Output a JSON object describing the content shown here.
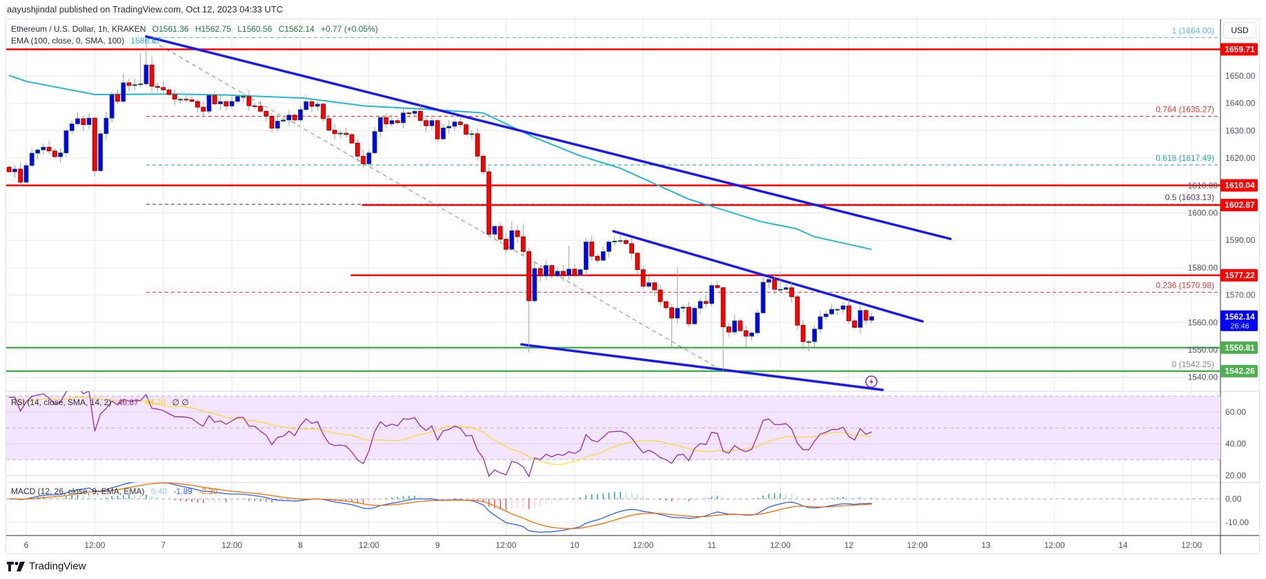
{
  "publisher": "aayushjindal published on TradingView.com, Oct 12, 2023 04:33 UTC",
  "legend": {
    "symbol": "Ethereum / U.S. Dollar, 1h, KRAKEN",
    "open": "O1561.36",
    "high": "H1562.75",
    "low": "L1560.56",
    "close": "C1562.14",
    "change": "+0.77 (+0.05%)",
    "ema_label": "EMA (100, close, 0, SMA, 100)",
    "ema_value": "1586.67",
    "rsi_label": "RSI (14, close, SMA, 14, 2)",
    "rsi_value": "46.87",
    "rsi_ma_value": "44.70",
    "rsi_extra": "∅ ∅",
    "macd_label": "MACD (12, 26, close, 9, EMA, EMA)",
    "macd_hist": "0.40",
    "macd_value": "-1.89",
    "macd_signal": "-2.30"
  },
  "currency_button": "USD",
  "brand": "TradingView",
  "colors": {
    "up": "#0000ff",
    "down": "#ff0000",
    "ema": "#22b8cf",
    "trend": "#1a1aee",
    "resistance": "#ff0000",
    "support": "#4caf50",
    "rsi": "#9c27b0",
    "rsi_ma": "#fdd835",
    "macd": "#2962ff",
    "signal": "#ff6d00",
    "last_price": "#0000ff"
  },
  "chart_data": {
    "type": "candlestick",
    "title": "Ethereum / U.S. Dollar, 1h, KRAKEN",
    "x_unit": "hours from Oct 6 00:00 UTC",
    "x_start": -3,
    "close": [
      1615.0,
      1616.0,
      1611.2,
      1617.3,
      1621.8,
      1623.0,
      1624.0,
      1622.6,
      1620.5,
      1621.9,
      1630.0,
      1632.5,
      1634.4,
      1632.2,
      1634.6,
      1615.4,
      1628.9,
      1634.6,
      1643.2,
      1640.7,
      1647.5,
      1646.5,
      1646.8,
      1647.1,
      1654.0,
      1646.2,
      1645.8,
      1644.9,
      1643.2,
      1641.5,
      1641.5,
      1641.3,
      1640.7,
      1638.6,
      1637.1,
      1642.9,
      1639.8,
      1640.6,
      1639.0,
      1640.7,
      1642.5,
      1642.5,
      1639.1,
      1639.0,
      1637.1,
      1635.3,
      1630.9,
      1633.5,
      1633.9,
      1635.7,
      1633.9,
      1637.7,
      1640.6,
      1638.9,
      1639.7,
      1634.4,
      1630.2,
      1628.9,
      1629.1,
      1628.6,
      1625.5,
      1620.7,
      1617.9,
      1621.9,
      1629.7,
      1634.8,
      1632.5,
      1633.7,
      1632.9,
      1636.5,
      1636.3,
      1637.1,
      1633.7,
      1631.8,
      1633.7,
      1627.0,
      1631.0,
      1631.6,
      1633.2,
      1632.2,
      1628.7,
      1628.9,
      1620.7,
      1615.0,
      1592.2,
      1595.1,
      1590.4,
      1586.7,
      1593.5,
      1591.3,
      1585.9,
      1567.9,
      1579.7,
      1577.0,
      1580.8,
      1577.0,
      1578.7,
      1577.2,
      1579.5,
      1577.4,
      1579.3,
      1589.4,
      1584.2,
      1582.7,
      1585.9,
      1589.4,
      1589.7,
      1589.9,
      1588.8,
      1585.3,
      1579.3,
      1573.2,
      1574.5,
      1571.9,
      1567.6,
      1565.4,
      1561.6,
      1565.2,
      1565.6,
      1559.5,
      1565.2,
      1567.7,
      1566.9,
      1573.5,
      1572.7,
      1558.4,
      1556.5,
      1560.6,
      1557.0,
      1555.0,
      1556.2,
      1563.5,
      1574.7,
      1575.7,
      1572.1,
      1572.1,
      1572.7,
      1569.4,
      1559.0,
      1553.0,
      1553.0,
      1557.6,
      1562.1,
      1563.1,
      1564.8,
      1564.8,
      1566.1,
      1560.6,
      1558.2,
      1564.4,
      1560.8,
      1562.14
    ],
    "first_open": 1616.7,
    "high_overrides": {
      "17": 1651.0,
      "20": 1658.0,
      "21": 1664.0,
      "22": 1657.0,
      "85": 1597.0,
      "87": 1596.0,
      "95": 1588.0,
      "114": 1580.0,
      "132": 1578.5
    },
    "low_overrides": {
      "12": 1613.5,
      "88": 1549.0,
      "113": 1550.6,
      "122": 1542.25,
      "126": 1551.0,
      "136": 1550.0,
      "137": 1549.5
    },
    "ema100": [
      [
        -3,
        1650.2
      ],
      [
        0,
        1648.0
      ],
      [
        7.5,
        1645.0
      ],
      [
        12,
        1643.2
      ],
      [
        25.6,
        1643.4
      ],
      [
        35.3,
        1643.0
      ],
      [
        48.6,
        1641.9
      ],
      [
        59.4,
        1639.0
      ],
      [
        70.3,
        1637.8
      ],
      [
        80,
        1636.5
      ],
      [
        88.8,
        1627.7
      ],
      [
        96.9,
        1620.9
      ],
      [
        104,
        1616.3
      ],
      [
        116,
        1605.0
      ],
      [
        128.6,
        1596.8
      ],
      [
        134.7,
        1594.3
      ],
      [
        138,
        1591.3
      ],
      [
        148,
        1586.67
      ]
    ],
    "trendlines": [
      {
        "name": "major-bearish-trend-line",
        "from": [
          21,
          1664.4
        ],
        "to": [
          161.8,
          1590.5
        ]
      },
      {
        "name": "channel-upper-line",
        "from": [
          102.8,
          1593.3
        ],
        "to": [
          156.9,
          1560.4
        ]
      },
      {
        "name": "channel-lower-line",
        "from": [
          86.7,
          1552.0
        ],
        "to": [
          149.9,
          1535.4
        ]
      }
    ],
    "fib_swing_line": {
      "from": [
        21,
        1664.0
      ],
      "to": [
        122,
        1542.25
      ]
    },
    "fib_levels": [
      {
        "label": "1 (1664.00)",
        "price": 1664.0,
        "color": "#5fb4e6"
      },
      {
        "label": "0.764 (1635.27)",
        "price": 1635.27,
        "color": "#e53935"
      },
      {
        "label": "0.618 (1617.49)",
        "price": 1617.49,
        "color": "#26b08a"
      },
      {
        "label": "0.5 (1603.13)",
        "price": 1603.13,
        "color": "#5d3a4f"
      },
      {
        "label": "0.236 (1570.98)",
        "price": 1570.98,
        "color": "#e53935"
      },
      {
        "label": "0 (1542.25)",
        "price": 1542.25,
        "color": "#888888"
      }
    ],
    "fib_start_hour": 21,
    "horizontal_lines": [
      {
        "label": "1659.71",
        "price": 1659.71,
        "kind": "resistance",
        "from_hour": null
      },
      {
        "label": "1610.04",
        "price": 1610.04,
        "kind": "resistance",
        "from_hour": null
      },
      {
        "label": "1602.87",
        "price": 1602.87,
        "kind": "resistance",
        "from_hour": 58.8
      },
      {
        "label": "1577.22",
        "price": 1577.22,
        "kind": "resistance",
        "from_hour": 56.8
      },
      {
        "label": "1550.81",
        "price": 1550.81,
        "kind": "support",
        "from_hour": null
      },
      {
        "label": "1542.26",
        "price": 1542.26,
        "kind": "support",
        "from_hour": null
      }
    ],
    "last_price": {
      "label": "1562.14",
      "countdown": "26:46",
      "price": 1562.14
    },
    "price_ticks": [
      "1540.00",
      "1550.00",
      "1560.00",
      "1570.00",
      "1580.00",
      "1590.00",
      "1600.00",
      "1610.00",
      "1620.00",
      "1630.00",
      "1640.00",
      "1650.00"
    ],
    "rsi_ticks": [
      "60.00",
      "40.00",
      "20.00"
    ],
    "macd_ticks": [
      "0.00",
      "-10.00"
    ],
    "time_ticks": [
      "6",
      "12:00",
      "7",
      "12:00",
      "8",
      "12:00",
      "9",
      "12:00",
      "10",
      "12:00",
      "11",
      "12:00",
      "12",
      "12:00",
      "13",
      "12:00",
      "14",
      "12:00"
    ],
    "time_tick_step_hours": 12,
    "ylim": [
      1535,
      1666
    ],
    "rsi": {
      "length": 14,
      "ma_length": 14,
      "upper_band": 70,
      "lower_band": 30,
      "mid": 50
    },
    "macd": {
      "fast": 12,
      "slow": 26,
      "signal": 9
    }
  }
}
